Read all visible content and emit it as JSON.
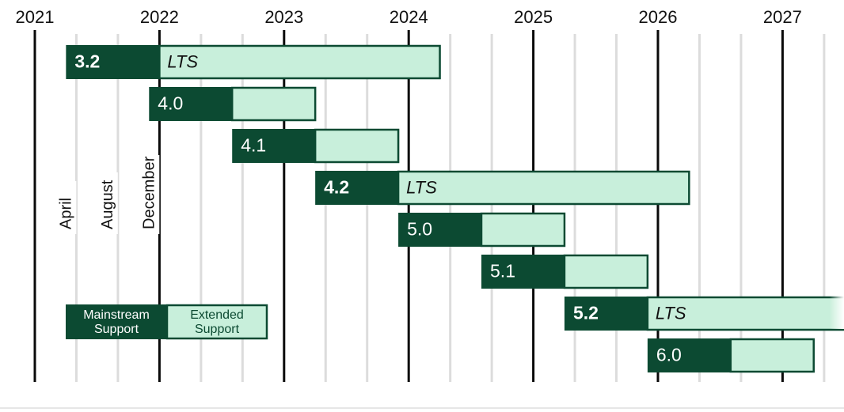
{
  "chart_data": {
    "type": "gantt",
    "title": "",
    "x_axis": {
      "type": "date",
      "range": [
        "2021-01-01",
        "2027-06-15"
      ],
      "year_labels": [
        "2021",
        "2022",
        "2023",
        "2024",
        "2025",
        "2026",
        "2027"
      ],
      "month_markers": [
        "April",
        "August",
        "December"
      ],
      "grid": true
    },
    "series": [
      {
        "name": "Mainstream Support",
        "color": "#0c4a32"
      },
      {
        "name": "Extended Support",
        "color": "#c8efdb"
      }
    ],
    "releases": [
      {
        "version": "3.2",
        "lts": true,
        "lts_label": "LTS",
        "release": "2021-04-01",
        "mainstream_end": "2022-01-01",
        "extended_end": "2024-04-01"
      },
      {
        "version": "4.0",
        "lts": false,
        "lts_label": "",
        "release": "2021-12-01",
        "mainstream_end": "2022-08-01",
        "extended_end": "2023-04-01"
      },
      {
        "version": "4.1",
        "lts": false,
        "lts_label": "",
        "release": "2022-08-01",
        "mainstream_end": "2023-04-01",
        "extended_end": "2023-12-01"
      },
      {
        "version": "4.2",
        "lts": true,
        "lts_label": "LTS",
        "release": "2023-04-01",
        "mainstream_end": "2023-12-01",
        "extended_end": "2026-04-01"
      },
      {
        "version": "5.0",
        "lts": false,
        "lts_label": "",
        "release": "2023-12-01",
        "mainstream_end": "2024-08-01",
        "extended_end": "2025-04-01"
      },
      {
        "version": "5.1",
        "lts": false,
        "lts_label": "",
        "release": "2024-08-01",
        "mainstream_end": "2025-04-01",
        "extended_end": "2025-12-01"
      },
      {
        "version": "5.2",
        "lts": true,
        "lts_label": "LTS",
        "release": "2025-04-01",
        "mainstream_end": "2025-12-01",
        "extended_end": "2028-04-01"
      },
      {
        "version": "6.0",
        "lts": false,
        "lts_label": "",
        "release": "2025-12-01",
        "mainstream_end": "2026-08-01",
        "extended_end": "2027-04-01"
      }
    ],
    "legend": {
      "placement": "bottom-left",
      "mainstream_label": [
        "Mainstream",
        "Support"
      ],
      "extended_label": [
        "Extended",
        "Support"
      ]
    }
  }
}
